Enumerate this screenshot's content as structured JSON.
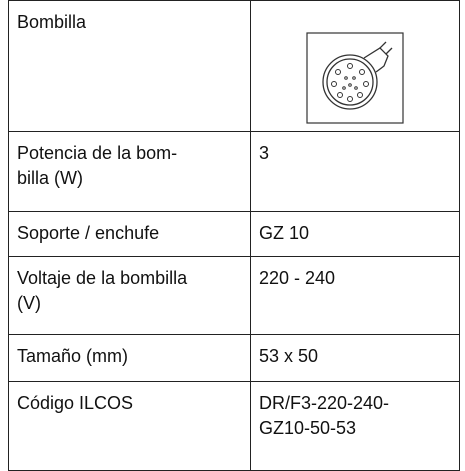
{
  "table": {
    "rows": [
      [
        "Bombilla"
      ],
      [
        "Potencia de la bom-\nbilla (W)",
        "3"
      ],
      [
        "Soporte / enchufe",
        "GZ 10"
      ],
      [
        "Voltaje de la bombilla\n(V)",
        "220 - 240"
      ],
      [
        "Tamaño (mm)",
        "53 x 50"
      ],
      [
        "Código ILCOS",
        "DR/F3-220-240-\nGZ10-50-53"
      ]
    ]
  }
}
